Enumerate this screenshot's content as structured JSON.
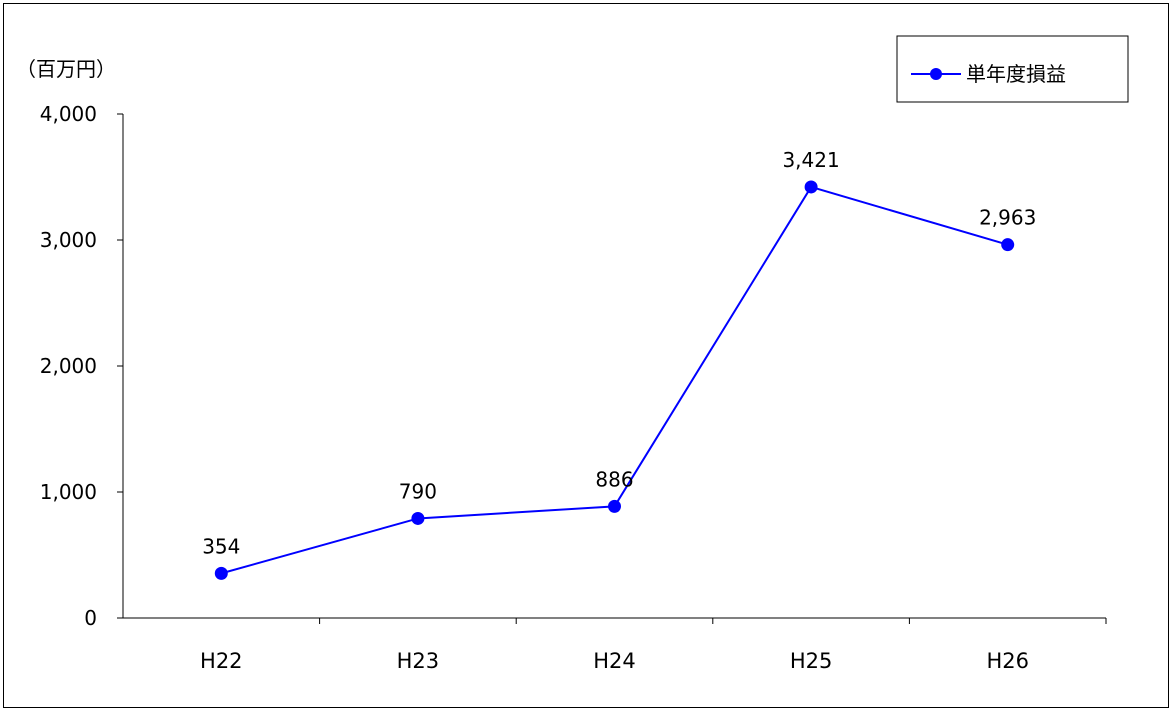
{
  "chart_data": {
    "type": "line",
    "unit_label": "（百万円）",
    "categories": [
      "H22",
      "H23",
      "H24",
      "H25",
      "H26"
    ],
    "series": [
      {
        "name": "単年度損益",
        "values": [
          354,
          790,
          886,
          3421,
          2963
        ],
        "data_labels": [
          "354",
          "790",
          "886",
          "3,421",
          "2,963"
        ],
        "color": "#0000ff"
      }
    ],
    "y_ticks": [
      0,
      1000,
      2000,
      3000,
      4000
    ],
    "y_tick_labels": [
      "0",
      "1,000",
      "2,000",
      "3,000",
      "4,000"
    ],
    "ylim": [
      0,
      4000
    ],
    "grid": false,
    "legend_position": "top-right",
    "axis_color": "#000000"
  }
}
